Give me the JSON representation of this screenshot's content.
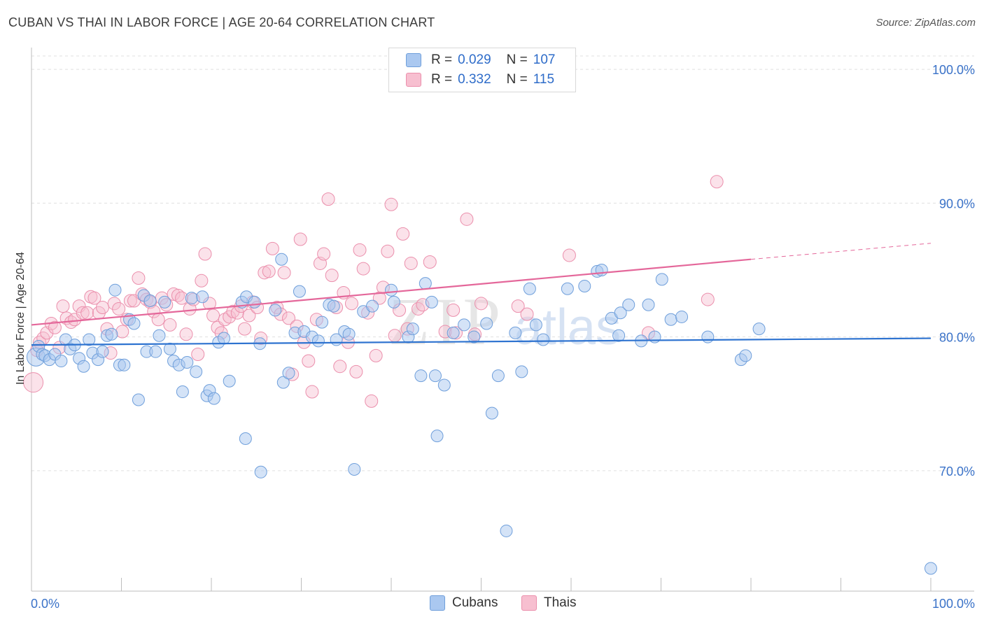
{
  "header": {
    "title": "CUBAN VS THAI IN LABOR FORCE | AGE 20-64 CORRELATION CHART",
    "source": "Source: ZipAtlas.com"
  },
  "legend": {
    "rows": [
      {
        "r_label": "R =",
        "r_value": "0.029",
        "n_label": "N =",
        "n_value": "107"
      },
      {
        "r_label": "R =",
        "r_value": "0.332",
        "n_label": "N =",
        "n_value": "115"
      }
    ]
  },
  "bottom_legend": {
    "cubans": "Cubans",
    "thais": "Thais"
  },
  "watermark": {
    "zip": "ZIP",
    "atlas": "atlas"
  },
  "colors": {
    "cubans_fill": "#aac8f0",
    "cubans_stroke": "#6f9fdb",
    "cubans_line": "#2e73d0",
    "thais_fill": "#f7bfd0",
    "thais_stroke": "#eb8fac",
    "thais_line": "#e4679a",
    "tick_label": "#3a72c8",
    "grid": "#e0e0e0"
  },
  "chart_data": {
    "type": "scatter",
    "title": "CUBAN VS THAI IN LABOR FORCE | AGE 20-64 CORRELATION CHART",
    "xlabel": "",
    "ylabel": "In Labor Force | Age 20-64",
    "xlim": [
      0,
      100
    ],
    "ylim": [
      61,
      101
    ],
    "x_tick_labels": [
      "0.0%",
      "100.0%"
    ],
    "y_ticks": [
      70,
      80,
      90,
      100
    ],
    "y_tick_labels": [
      "70.0%",
      "80.0%",
      "90.0%",
      "100.0%"
    ],
    "grid": true,
    "legend_position": "top-center",
    "series": [
      {
        "name": "Cubans",
        "r": 0.029,
        "n": 107,
        "trend": {
          "x": [
            0,
            100
          ],
          "y": [
            79.4,
            79.9
          ]
        },
        "points": [
          [
            0.5,
            78.5
          ],
          [
            0.8,
            79.3
          ],
          [
            1.2,
            78.7
          ],
          [
            1.5,
            78.6
          ],
          [
            2.0,
            78.3
          ],
          [
            2.6,
            78.7
          ],
          [
            3.3,
            78.2
          ],
          [
            3.8,
            79.8
          ],
          [
            4.3,
            79.1
          ],
          [
            4.8,
            79.4
          ],
          [
            5.3,
            78.4
          ],
          [
            5.8,
            77.8
          ],
          [
            6.4,
            79.8
          ],
          [
            6.8,
            78.8
          ],
          [
            7.4,
            78.3
          ],
          [
            7.9,
            78.9
          ],
          [
            8.4,
            80.1
          ],
          [
            8.9,
            80.2
          ],
          [
            9.3,
            83.5
          ],
          [
            9.8,
            77.9
          ],
          [
            10.3,
            77.9
          ],
          [
            10.9,
            81.3
          ],
          [
            11.4,
            81.0
          ],
          [
            11.9,
            75.3
          ],
          [
            12.5,
            83.1
          ],
          [
            12.8,
            78.9
          ],
          [
            13.2,
            82.7
          ],
          [
            13.8,
            78.9
          ],
          [
            14.2,
            80.1
          ],
          [
            14.8,
            82.6
          ],
          [
            15.4,
            79.1
          ],
          [
            15.8,
            78.2
          ],
          [
            16.4,
            77.9
          ],
          [
            16.8,
            75.9
          ],
          [
            17.3,
            78.1
          ],
          [
            17.8,
            82.9
          ],
          [
            18.3,
            77.4
          ],
          [
            19.0,
            83.0
          ],
          [
            19.5,
            75.6
          ],
          [
            19.8,
            76.0
          ],
          [
            20.3,
            75.4
          ],
          [
            20.8,
            79.6
          ],
          [
            21.4,
            79.9
          ],
          [
            22.0,
            76.7
          ],
          [
            23.4,
            82.6
          ],
          [
            23.9,
            83.0
          ],
          [
            23.8,
            72.4
          ],
          [
            24.8,
            82.6
          ],
          [
            25.5,
            69.9
          ],
          [
            25.4,
            79.5
          ],
          [
            27.1,
            82.0
          ],
          [
            27.8,
            85.8
          ],
          [
            28.0,
            76.6
          ],
          [
            28.6,
            77.3
          ],
          [
            29.3,
            80.3
          ],
          [
            29.8,
            83.4
          ],
          [
            30.3,
            80.4
          ],
          [
            31.2,
            80.0
          ],
          [
            31.9,
            79.7
          ],
          [
            32.3,
            81.1
          ],
          [
            33.1,
            82.4
          ],
          [
            33.6,
            82.3
          ],
          [
            33.9,
            79.8
          ],
          [
            34.8,
            80.4
          ],
          [
            35.3,
            80.2
          ],
          [
            35.9,
            70.1
          ],
          [
            36.9,
            81.9
          ],
          [
            37.9,
            82.3
          ],
          [
            40.0,
            83.5
          ],
          [
            40.3,
            82.6
          ],
          [
            41.9,
            80.0
          ],
          [
            42.4,
            80.6
          ],
          [
            43.3,
            77.1
          ],
          [
            43.8,
            84.0
          ],
          [
            44.5,
            82.6
          ],
          [
            44.9,
            77.1
          ],
          [
            45.1,
            72.6
          ],
          [
            45.9,
            76.4
          ],
          [
            46.9,
            80.3
          ],
          [
            48.1,
            80.9
          ],
          [
            49.2,
            80.0
          ],
          [
            50.6,
            81.0
          ],
          [
            51.2,
            74.3
          ],
          [
            51.9,
            77.1
          ],
          [
            52.8,
            65.5
          ],
          [
            53.8,
            80.3
          ],
          [
            54.5,
            77.4
          ],
          [
            55.4,
            83.6
          ],
          [
            56.1,
            80.9
          ],
          [
            56.9,
            79.8
          ],
          [
            59.6,
            83.6
          ],
          [
            61.5,
            83.8
          ],
          [
            62.9,
            84.9
          ],
          [
            63.4,
            85.0
          ],
          [
            64.5,
            81.4
          ],
          [
            65.3,
            80.1
          ],
          [
            65.5,
            81.8
          ],
          [
            66.4,
            82.4
          ],
          [
            67.8,
            79.7
          ],
          [
            68.6,
            82.4
          ],
          [
            69.3,
            80.0
          ],
          [
            70.1,
            84.3
          ],
          [
            71.1,
            81.3
          ],
          [
            72.3,
            81.5
          ],
          [
            75.2,
            80.0
          ],
          [
            78.9,
            78.3
          ],
          [
            79.4,
            78.6
          ],
          [
            80.9,
            80.6
          ],
          [
            100.0,
            62.7
          ]
        ]
      },
      {
        "name": "Thais",
        "r": 0.332,
        "n": 115,
        "trend": {
          "x": [
            0,
            80
          ],
          "y": [
            80.9,
            85.8
          ]
        },
        "trend_dashed": {
          "x": [
            80,
            100
          ],
          "y": [
            85.8,
            87.0
          ]
        },
        "points": [
          [
            0.2,
            76.6
          ],
          [
            0.6,
            79.0
          ],
          [
            0.9,
            79.6
          ],
          [
            1.3,
            79.9
          ],
          [
            1.7,
            80.3
          ],
          [
            2.2,
            81.0
          ],
          [
            2.6,
            80.7
          ],
          [
            3.1,
            79.2
          ],
          [
            3.5,
            82.3
          ],
          [
            3.9,
            81.4
          ],
          [
            4.4,
            81.1
          ],
          [
            4.8,
            81.3
          ],
          [
            5.3,
            82.3
          ],
          [
            5.7,
            81.8
          ],
          [
            6.2,
            81.8
          ],
          [
            6.6,
            83.0
          ],
          [
            7.0,
            82.9
          ],
          [
            7.5,
            81.8
          ],
          [
            7.9,
            82.2
          ],
          [
            8.4,
            80.6
          ],
          [
            8.8,
            78.8
          ],
          [
            9.2,
            82.5
          ],
          [
            9.7,
            82.1
          ],
          [
            10.1,
            80.4
          ],
          [
            10.6,
            81.3
          ],
          [
            11.0,
            82.7
          ],
          [
            11.4,
            82.7
          ],
          [
            11.9,
            84.4
          ],
          [
            12.3,
            83.2
          ],
          [
            12.8,
            82.8
          ],
          [
            13.2,
            82.6
          ],
          [
            13.6,
            81.9
          ],
          [
            14.1,
            81.3
          ],
          [
            14.5,
            82.9
          ],
          [
            15.0,
            82.4
          ],
          [
            15.4,
            80.9
          ],
          [
            15.8,
            83.2
          ],
          [
            16.3,
            83.1
          ],
          [
            16.7,
            82.9
          ],
          [
            17.2,
            80.2
          ],
          [
            17.6,
            82.1
          ],
          [
            18.0,
            82.8
          ],
          [
            18.5,
            78.7
          ],
          [
            18.9,
            84.2
          ],
          [
            19.3,
            86.2
          ],
          [
            19.8,
            82.5
          ],
          [
            20.2,
            81.6
          ],
          [
            20.7,
            80.7
          ],
          [
            21.1,
            80.3
          ],
          [
            21.5,
            81.3
          ],
          [
            22.0,
            81.5
          ],
          [
            22.4,
            81.9
          ],
          [
            22.9,
            81.8
          ],
          [
            23.3,
            82.3
          ],
          [
            23.7,
            80.6
          ],
          [
            24.2,
            81.6
          ],
          [
            24.6,
            82.6
          ],
          [
            25.1,
            82.2
          ],
          [
            25.5,
            79.9
          ],
          [
            25.9,
            84.8
          ],
          [
            26.4,
            84.9
          ],
          [
            26.8,
            86.6
          ],
          [
            27.3,
            82.2
          ],
          [
            27.7,
            81.7
          ],
          [
            28.1,
            84.8
          ],
          [
            28.6,
            81.4
          ],
          [
            29.0,
            77.2
          ],
          [
            29.5,
            80.8
          ],
          [
            29.9,
            87.3
          ],
          [
            30.3,
            79.6
          ],
          [
            30.8,
            78.2
          ],
          [
            31.2,
            75.9
          ],
          [
            31.7,
            81.3
          ],
          [
            32.1,
            85.5
          ],
          [
            32.5,
            86.2
          ],
          [
            33.0,
            90.3
          ],
          [
            33.4,
            84.6
          ],
          [
            33.9,
            82.2
          ],
          [
            34.3,
            77.8
          ],
          [
            34.7,
            83.3
          ],
          [
            35.2,
            79.6
          ],
          [
            35.6,
            82.5
          ],
          [
            36.1,
            77.4
          ],
          [
            36.5,
            86.5
          ],
          [
            36.9,
            85.1
          ],
          [
            37.4,
            81.8
          ],
          [
            37.8,
            75.2
          ],
          [
            38.3,
            78.6
          ],
          [
            38.7,
            82.9
          ],
          [
            39.1,
            83.7
          ],
          [
            39.6,
            86.4
          ],
          [
            40.0,
            89.9
          ],
          [
            40.4,
            80.1
          ],
          [
            40.9,
            82.0
          ],
          [
            41.3,
            87.7
          ],
          [
            41.8,
            80.6
          ],
          [
            42.2,
            85.5
          ],
          [
            43.0,
            82.1
          ],
          [
            43.5,
            82.4
          ],
          [
            44.3,
            85.6
          ],
          [
            46.0,
            80.4
          ],
          [
            46.9,
            82.0
          ],
          [
            47.2,
            80.3
          ],
          [
            48.4,
            88.8
          ],
          [
            49.3,
            80.2
          ],
          [
            50.0,
            82.5
          ],
          [
            54.1,
            82.3
          ],
          [
            55.1,
            81.7
          ],
          [
            59.8,
            86.1
          ],
          [
            68.6,
            80.3
          ],
          [
            75.2,
            82.8
          ],
          [
            76.2,
            91.6
          ]
        ]
      }
    ]
  }
}
